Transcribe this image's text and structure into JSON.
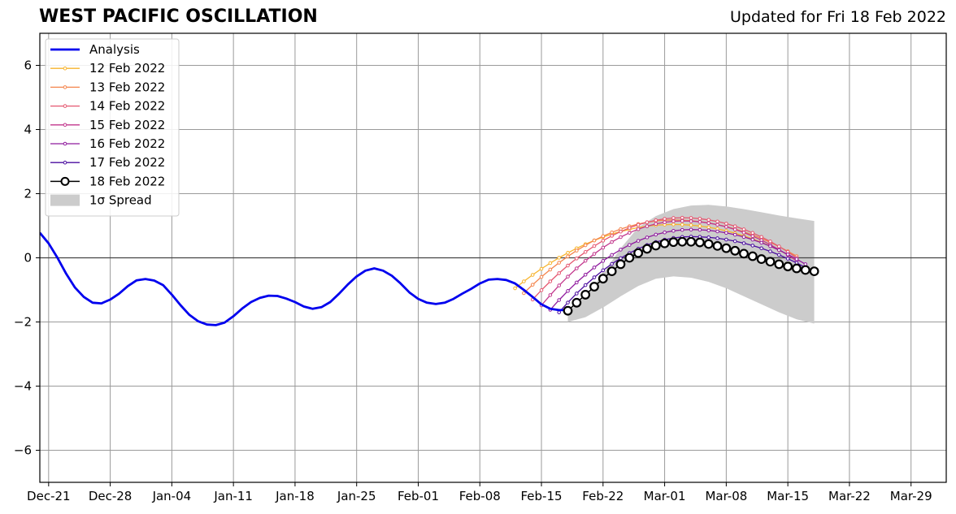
{
  "header": {
    "title": "WEST PACIFIC OSCILLATION",
    "updated": "Updated for Fri 18 Feb 2022"
  },
  "chart_data": {
    "type": "line",
    "title": "WEST PACIFIC OSCILLATION",
    "subtitle": "Updated for Fri 18 Feb 2022",
    "xlabel": "",
    "ylabel": "",
    "x_is_date": true,
    "xlim": [
      "2021-12-20",
      "2022-04-02"
    ],
    "ylim": [
      -7,
      7
    ],
    "grid": true,
    "legend_position": "upper-left",
    "x_ticks": [
      {
        "date": "2021-12-21",
        "label": "Dec-21"
      },
      {
        "date": "2021-12-28",
        "label": "Dec-28"
      },
      {
        "date": "2022-01-04",
        "label": "Jan-04"
      },
      {
        "date": "2022-01-11",
        "label": "Jan-11"
      },
      {
        "date": "2022-01-18",
        "label": "Jan-18"
      },
      {
        "date": "2022-01-25",
        "label": "Jan-25"
      },
      {
        "date": "2022-02-01",
        "label": "Feb-01"
      },
      {
        "date": "2022-02-08",
        "label": "Feb-08"
      },
      {
        "date": "2022-02-15",
        "label": "Feb-15"
      },
      {
        "date": "2022-02-22",
        "label": "Feb-22"
      },
      {
        "date": "2022-03-01",
        "label": "Mar-01"
      },
      {
        "date": "2022-03-08",
        "label": "Mar-08"
      },
      {
        "date": "2022-03-15",
        "label": "Mar-15"
      },
      {
        "date": "2022-03-22",
        "label": "Mar-22"
      },
      {
        "date": "2022-03-29",
        "label": "Mar-29"
      }
    ],
    "y_ticks": [
      {
        "value": 6,
        "label": "6"
      },
      {
        "value": 4,
        "label": "4"
      },
      {
        "value": 2,
        "label": "2"
      },
      {
        "value": 0,
        "label": "0"
      },
      {
        "value": -2,
        "label": "−2"
      },
      {
        "value": -4,
        "label": "−4"
      },
      {
        "value": -6,
        "label": "−6"
      }
    ],
    "analysis": {
      "name": "Analysis",
      "color": "#0000ee",
      "points": [
        [
          "2021-12-20",
          0.78
        ],
        [
          "2021-12-21",
          0.45
        ],
        [
          "2021-12-22",
          0.0
        ],
        [
          "2021-12-23",
          -0.5
        ],
        [
          "2021-12-24",
          -0.93
        ],
        [
          "2021-12-25",
          -1.22
        ],
        [
          "2021-12-26",
          -1.4
        ],
        [
          "2021-12-27",
          -1.42
        ],
        [
          "2021-12-28",
          -1.3
        ],
        [
          "2021-12-29",
          -1.12
        ],
        [
          "2021-12-30",
          -0.88
        ],
        [
          "2021-12-31",
          -0.7
        ],
        [
          "2022-01-01",
          -0.66
        ],
        [
          "2022-01-02",
          -0.71
        ],
        [
          "2022-01-03",
          -0.85
        ],
        [
          "2022-01-04",
          -1.15
        ],
        [
          "2022-01-05",
          -1.48
        ],
        [
          "2022-01-06",
          -1.78
        ],
        [
          "2022-01-07",
          -1.98
        ],
        [
          "2022-01-08",
          -2.08
        ],
        [
          "2022-01-09",
          -2.1
        ],
        [
          "2022-01-10",
          -2.02
        ],
        [
          "2022-01-11",
          -1.82
        ],
        [
          "2022-01-12",
          -1.58
        ],
        [
          "2022-01-13",
          -1.38
        ],
        [
          "2022-01-14",
          -1.25
        ],
        [
          "2022-01-15",
          -1.18
        ],
        [
          "2022-01-16",
          -1.19
        ],
        [
          "2022-01-17",
          -1.27
        ],
        [
          "2022-01-18",
          -1.38
        ],
        [
          "2022-01-19",
          -1.52
        ],
        [
          "2022-01-20",
          -1.59
        ],
        [
          "2022-01-21",
          -1.54
        ],
        [
          "2022-01-22",
          -1.38
        ],
        [
          "2022-01-23",
          -1.12
        ],
        [
          "2022-01-24",
          -0.83
        ],
        [
          "2022-01-25",
          -0.58
        ],
        [
          "2022-01-26",
          -0.4
        ],
        [
          "2022-01-27",
          -0.33
        ],
        [
          "2022-01-28",
          -0.4
        ],
        [
          "2022-01-29",
          -0.56
        ],
        [
          "2022-01-30",
          -0.8
        ],
        [
          "2022-01-31",
          -1.08
        ],
        [
          "2022-02-01",
          -1.28
        ],
        [
          "2022-02-02",
          -1.4
        ],
        [
          "2022-02-03",
          -1.44
        ],
        [
          "2022-02-04",
          -1.4
        ],
        [
          "2022-02-05",
          -1.28
        ],
        [
          "2022-02-06",
          -1.12
        ],
        [
          "2022-02-07",
          -0.97
        ],
        [
          "2022-02-08",
          -0.8
        ],
        [
          "2022-02-09",
          -0.68
        ],
        [
          "2022-02-10",
          -0.66
        ],
        [
          "2022-02-11",
          -0.69
        ],
        [
          "2022-02-12",
          -0.8
        ],
        [
          "2022-02-13",
          -1.0
        ],
        [
          "2022-02-14",
          -1.22
        ],
        [
          "2022-02-15",
          -1.45
        ],
        [
          "2022-02-16",
          -1.59
        ],
        [
          "2022-02-17",
          -1.63
        ],
        [
          "2022-02-18",
          -1.63
        ]
      ]
    },
    "forecasts": [
      {
        "name": "12 Feb 2022",
        "color": "#f7b32b",
        "start": "2022-02-12",
        "end": "2022-03-16",
        "start_value": -0.95,
        "peak_value": 1.04,
        "peak_date": "2022-03-02",
        "end_value": -0.05
      },
      {
        "name": "13 Feb 2022",
        "color": "#f4844c",
        "start": "2022-02-13",
        "end": "2022-03-16",
        "start_value": -1.1,
        "peak_value": 1.18,
        "peak_date": "2022-03-02",
        "end_value": 0.05
      },
      {
        "name": "14 Feb 2022",
        "color": "#e55770",
        "start": "2022-02-14",
        "end": "2022-03-16",
        "start_value": -1.3,
        "peak_value": 1.25,
        "peak_date": "2022-03-03",
        "end_value": 0.0
      },
      {
        "name": "15 Feb 2022",
        "color": "#c2368c",
        "start": "2022-02-15",
        "end": "2022-03-16",
        "start_value": -1.48,
        "peak_value": 1.15,
        "peak_date": "2022-03-03",
        "end_value": -0.1
      },
      {
        "name": "16 Feb 2022",
        "color": "#8f1a9e",
        "start": "2022-02-16",
        "end": "2022-03-17",
        "start_value": -1.62,
        "peak_value": 0.88,
        "peak_date": "2022-03-04",
        "end_value": -0.2
      },
      {
        "name": "17 Feb 2022",
        "color": "#4a0c9f",
        "start": "2022-02-17",
        "end": "2022-03-17",
        "start_value": -1.7,
        "peak_value": 0.66,
        "peak_date": "2022-03-04",
        "end_value": -0.3
      }
    ],
    "current_forecast": {
      "name": "18 Feb 2022",
      "color": "#000000",
      "points": [
        [
          "2022-02-18",
          -1.65
        ],
        [
          "2022-02-19",
          -1.4
        ],
        [
          "2022-02-20",
          -1.15
        ],
        [
          "2022-02-21",
          -0.9
        ],
        [
          "2022-02-22",
          -0.65
        ],
        [
          "2022-02-23",
          -0.42
        ],
        [
          "2022-02-24",
          -0.2
        ],
        [
          "2022-02-25",
          0.0
        ],
        [
          "2022-02-26",
          0.15
        ],
        [
          "2022-02-27",
          0.28
        ],
        [
          "2022-02-28",
          0.38
        ],
        [
          "2022-03-01",
          0.45
        ],
        [
          "2022-03-02",
          0.49
        ],
        [
          "2022-03-03",
          0.5
        ],
        [
          "2022-03-04",
          0.5
        ],
        [
          "2022-03-05",
          0.48
        ],
        [
          "2022-03-06",
          0.43
        ],
        [
          "2022-03-07",
          0.37
        ],
        [
          "2022-03-08",
          0.3
        ],
        [
          "2022-03-09",
          0.22
        ],
        [
          "2022-03-10",
          0.13
        ],
        [
          "2022-03-11",
          0.05
        ],
        [
          "2022-03-12",
          -0.04
        ],
        [
          "2022-03-13",
          -0.12
        ],
        [
          "2022-03-14",
          -0.2
        ],
        [
          "2022-03-15",
          -0.27
        ],
        [
          "2022-03-16",
          -0.33
        ],
        [
          "2022-03-17",
          -0.38
        ],
        [
          "2022-03-18",
          -0.42
        ]
      ]
    },
    "spread": {
      "name": "1σ Spread",
      "color": "#cccccc",
      "upper": [
        [
          "2022-02-18",
          -1.7
        ],
        [
          "2022-02-20",
          -1.2
        ],
        [
          "2022-02-22",
          -0.5
        ],
        [
          "2022-02-24",
          0.3
        ],
        [
          "2022-02-26",
          0.95
        ],
        [
          "2022-02-28",
          1.3
        ],
        [
          "2022-03-02",
          1.52
        ],
        [
          "2022-03-04",
          1.63
        ],
        [
          "2022-03-06",
          1.65
        ],
        [
          "2022-03-08",
          1.6
        ],
        [
          "2022-03-10",
          1.52
        ],
        [
          "2022-03-12",
          1.42
        ],
        [
          "2022-03-14",
          1.32
        ],
        [
          "2022-03-16",
          1.23
        ],
        [
          "2022-03-18",
          1.15
        ]
      ],
      "lower": [
        [
          "2022-02-18",
          -2.0
        ],
        [
          "2022-02-20",
          -1.85
        ],
        [
          "2022-02-22",
          -1.55
        ],
        [
          "2022-02-24",
          -1.2
        ],
        [
          "2022-02-26",
          -0.88
        ],
        [
          "2022-02-28",
          -0.65
        ],
        [
          "2022-03-02",
          -0.58
        ],
        [
          "2022-03-04",
          -0.62
        ],
        [
          "2022-03-06",
          -0.75
        ],
        [
          "2022-03-08",
          -0.95
        ],
        [
          "2022-03-10",
          -1.2
        ],
        [
          "2022-03-12",
          -1.45
        ],
        [
          "2022-03-14",
          -1.7
        ],
        [
          "2022-03-16",
          -1.92
        ],
        [
          "2022-03-18",
          -2.05
        ]
      ]
    },
    "legend": [
      {
        "label": "Analysis",
        "kind": "thick-line",
        "color": "#0000ee"
      },
      {
        "label": "12 Feb 2022",
        "kind": "small-marker",
        "color": "#f7b32b"
      },
      {
        "label": "13 Feb 2022",
        "kind": "small-marker",
        "color": "#f4844c"
      },
      {
        "label": "14 Feb 2022",
        "kind": "small-marker",
        "color": "#e55770"
      },
      {
        "label": "15 Feb 2022",
        "kind": "small-marker",
        "color": "#c2368c"
      },
      {
        "label": "16 Feb 2022",
        "kind": "small-marker",
        "color": "#8f1a9e"
      },
      {
        "label": "17 Feb 2022",
        "kind": "small-marker",
        "color": "#4a0c9f"
      },
      {
        "label": "18 Feb 2022",
        "kind": "big-marker",
        "color": "#000000"
      },
      {
        "label": "1σ Spread",
        "kind": "patch",
        "color": "#cccccc"
      }
    ]
  }
}
